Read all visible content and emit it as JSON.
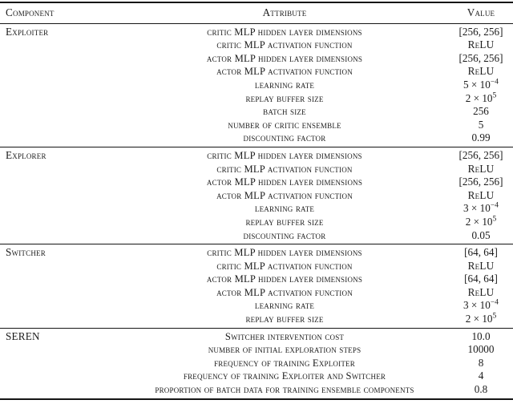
{
  "page": {
    "background": "#ffffff",
    "text_color": "#1b1b1b",
    "rule_color": "#151515"
  },
  "table": {
    "headers": {
      "component": "Component",
      "attribute": "Attribute",
      "value": "Value"
    },
    "sections": [
      {
        "component": "Exploiter",
        "rows": [
          {
            "attribute": "critic MLP hidden layer dimensions",
            "value": "[256, 256]"
          },
          {
            "attribute": "critic MLP activation function",
            "value": "ReLU",
            "sc": true
          },
          {
            "attribute": "actor MLP hidden layer dimensions",
            "value": "[256, 256]"
          },
          {
            "attribute": "actor MLP activation function",
            "value": "ReLU",
            "sc": true
          },
          {
            "attribute": "learning rate",
            "value": "5 × 10^{−4}"
          },
          {
            "attribute": "replay buffer size",
            "value": "2 × 10^{5}"
          },
          {
            "attribute": "batch size",
            "value": "256"
          },
          {
            "attribute": "number of critic ensemble",
            "value": "5"
          },
          {
            "attribute": "discounting factor",
            "value": "0.99"
          }
        ]
      },
      {
        "component": "Explorer",
        "rows": [
          {
            "attribute": "critic MLP hidden layer dimensions",
            "value": "[256, 256]"
          },
          {
            "attribute": "critic MLP activation function",
            "value": "ReLU",
            "sc": true
          },
          {
            "attribute": "actor MLP hidden layer dimensions",
            "value": "[256, 256]"
          },
          {
            "attribute": "actor MLP activation function",
            "value": "ReLU",
            "sc": true
          },
          {
            "attribute": "learning rate",
            "value": "3 × 10^{−4}"
          },
          {
            "attribute": "replay buffer size",
            "value": "2 × 10^{5}"
          },
          {
            "attribute": "discounting factor",
            "value": "0.05"
          }
        ]
      },
      {
        "component": "Switcher",
        "rows": [
          {
            "attribute": "critic MLP hidden layer dimensions",
            "value": "[64, 64]"
          },
          {
            "attribute": "critic MLP activation function",
            "value": "ReLU",
            "sc": true
          },
          {
            "attribute": "actor MLP hidden layer dimensions",
            "value": "[64, 64]"
          },
          {
            "attribute": "actor MLP activation function",
            "value": "ReLU",
            "sc": true
          },
          {
            "attribute": "learning rate",
            "value": "3 × 10^{−4}"
          },
          {
            "attribute": "replay buffer size",
            "value": "2 × 10^{5}"
          }
        ]
      },
      {
        "component": "SEREN",
        "rows": [
          {
            "attribute": "Switcher intervention cost",
            "value": "10.0"
          },
          {
            "attribute": "number of initial exploration steps",
            "value": "10000"
          },
          {
            "attribute": "frequency of training Exploiter",
            "value": "8"
          },
          {
            "attribute": "frequency of training Exploiter and Switcher",
            "value": "4"
          },
          {
            "attribute": "proportion of batch data for training ensemble components",
            "value": "0.8"
          }
        ]
      }
    ]
  }
}
